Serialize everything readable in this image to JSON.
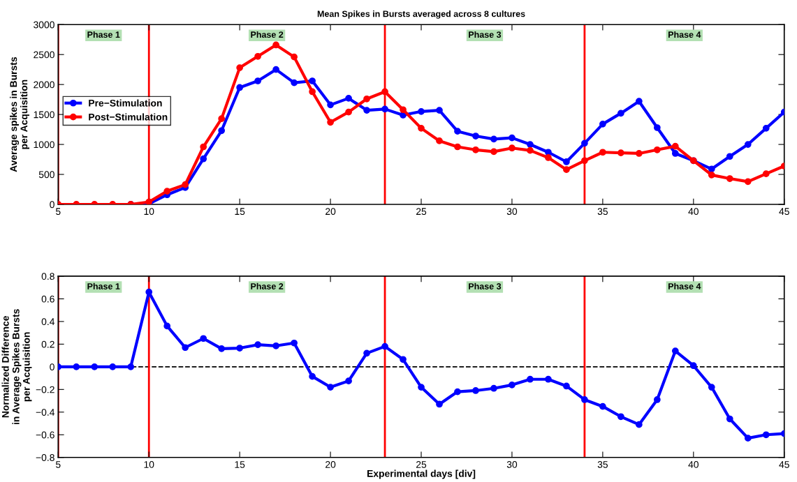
{
  "chart_data": [
    {
      "type": "line",
      "title": "Mean Spikes in Bursts averaged across 8 cultures",
      "ylabel": "Average spikes in Bursts\nper Acquisition",
      "x": [
        5,
        6,
        7,
        8,
        9,
        10,
        11,
        12,
        13,
        14,
        15,
        16,
        17,
        18,
        19,
        20,
        21,
        22,
        23,
        24,
        25,
        26,
        27,
        28,
        29,
        30,
        31,
        32,
        33,
        34,
        35,
        36,
        37,
        38,
        39,
        40,
        41,
        42,
        43,
        44,
        45
      ],
      "series": [
        {
          "name": "Pre−Stimulation",
          "color": "#0000ff",
          "values": [
            null,
            null,
            null,
            null,
            0,
            10,
            160,
            280,
            760,
            1230,
            1950,
            2060,
            2250,
            2030,
            2060,
            1660,
            1770,
            1570,
            1590,
            1490,
            1550,
            1570,
            1220,
            1140,
            1090,
            1110,
            1000,
            870,
            710,
            1020,
            1340,
            1520,
            1720,
            1280,
            850,
            730,
            590,
            800,
            1000,
            1270,
            1540
          ]
        },
        {
          "name": "Post−Stimulation",
          "color": "#ff0000",
          "values": [
            0,
            0,
            0,
            0,
            0,
            40,
            220,
            330,
            960,
            1430,
            2280,
            2470,
            2660,
            2460,
            1880,
            1370,
            1540,
            1760,
            1880,
            1580,
            1270,
            1060,
            960,
            910,
            880,
            940,
            900,
            780,
            580,
            730,
            870,
            860,
            850,
            910,
            970,
            730,
            490,
            430,
            380,
            510,
            640
          ]
        }
      ],
      "xlim": [
        5,
        45
      ],
      "xticks": [
        5,
        10,
        15,
        20,
        25,
        30,
        35,
        40,
        45
      ],
      "ylim": [
        0,
        3000
      ],
      "yticks": [
        0,
        500,
        1000,
        1500,
        2000,
        2500,
        3000
      ],
      "ref_lines": [
        {
          "axis": "x",
          "value": 5,
          "color": "#ff0000"
        },
        {
          "axis": "x",
          "value": 10,
          "color": "#ff0000"
        },
        {
          "axis": "x",
          "value": 23,
          "color": "#ff0000"
        },
        {
          "axis": "x",
          "value": 34,
          "color": "#ff0000"
        }
      ],
      "annotations": [
        "Phase 1",
        "Phase 2",
        "Phase 3",
        "Phase 4"
      ],
      "legend": "left",
      "grid": false,
      "marker": "circle",
      "line_style": "solid"
    },
    {
      "type": "line",
      "xlabel": "Experimental days [div]",
      "ylabel": "Normalized Difference\nin Average Spikes Bursts\nper Acquisition",
      "x": [
        5,
        6,
        7,
        8,
        9,
        10,
        11,
        12,
        13,
        14,
        15,
        16,
        17,
        18,
        19,
        20,
        21,
        22,
        23,
        24,
        25,
        26,
        27,
        28,
        29,
        30,
        31,
        32,
        33,
        34,
        35,
        36,
        37,
        38,
        39,
        40,
        41,
        42,
        43,
        44,
        45
      ],
      "series": [
        {
          "color": "#0000ff",
          "values": [
            0,
            0,
            0,
            0,
            0,
            0.66,
            0.36,
            0.17,
            0.25,
            0.16,
            0.165,
            0.195,
            0.185,
            0.21,
            -0.085,
            -0.18,
            -0.125,
            0.12,
            0.18,
            0.065,
            -0.18,
            -0.33,
            -0.22,
            -0.21,
            -0.19,
            -0.16,
            -0.11,
            -0.11,
            -0.17,
            -0.29,
            -0.35,
            -0.44,
            -0.51,
            -0.29,
            0.14,
            0.01,
            -0.18,
            -0.46,
            -0.63,
            -0.6,
            -0.59
          ]
        }
      ],
      "xlim": [
        5,
        45
      ],
      "xticks": [
        5,
        10,
        15,
        20,
        25,
        30,
        35,
        40,
        45
      ],
      "ylim": [
        -0.8,
        0.8
      ],
      "yticks": [
        {
          "value": -0.8,
          "label": "−0.8"
        },
        {
          "value": -0.6,
          "label": "−0.6"
        },
        {
          "value": -0.4,
          "label": "−0.4"
        },
        {
          "value": -0.2,
          "label": "−0.2"
        },
        0,
        0.2,
        0.4,
        0.6,
        0.8
      ],
      "ref_lines": [
        {
          "axis": "y",
          "value": 0,
          "color": "#000000",
          "line_style": "dashed"
        },
        {
          "axis": "x",
          "value": 5,
          "color": "#ff0000"
        },
        {
          "axis": "x",
          "value": 10,
          "color": "#ff0000"
        },
        {
          "axis": "x",
          "value": 23,
          "color": "#ff0000"
        },
        {
          "axis": "x",
          "value": 34,
          "color": "#ff0000"
        }
      ],
      "annotations": [
        "Phase 1",
        "Phase 2",
        "Phase 3",
        "Phase 4"
      ],
      "grid": false,
      "marker": "circle",
      "line_style": "solid"
    }
  ]
}
